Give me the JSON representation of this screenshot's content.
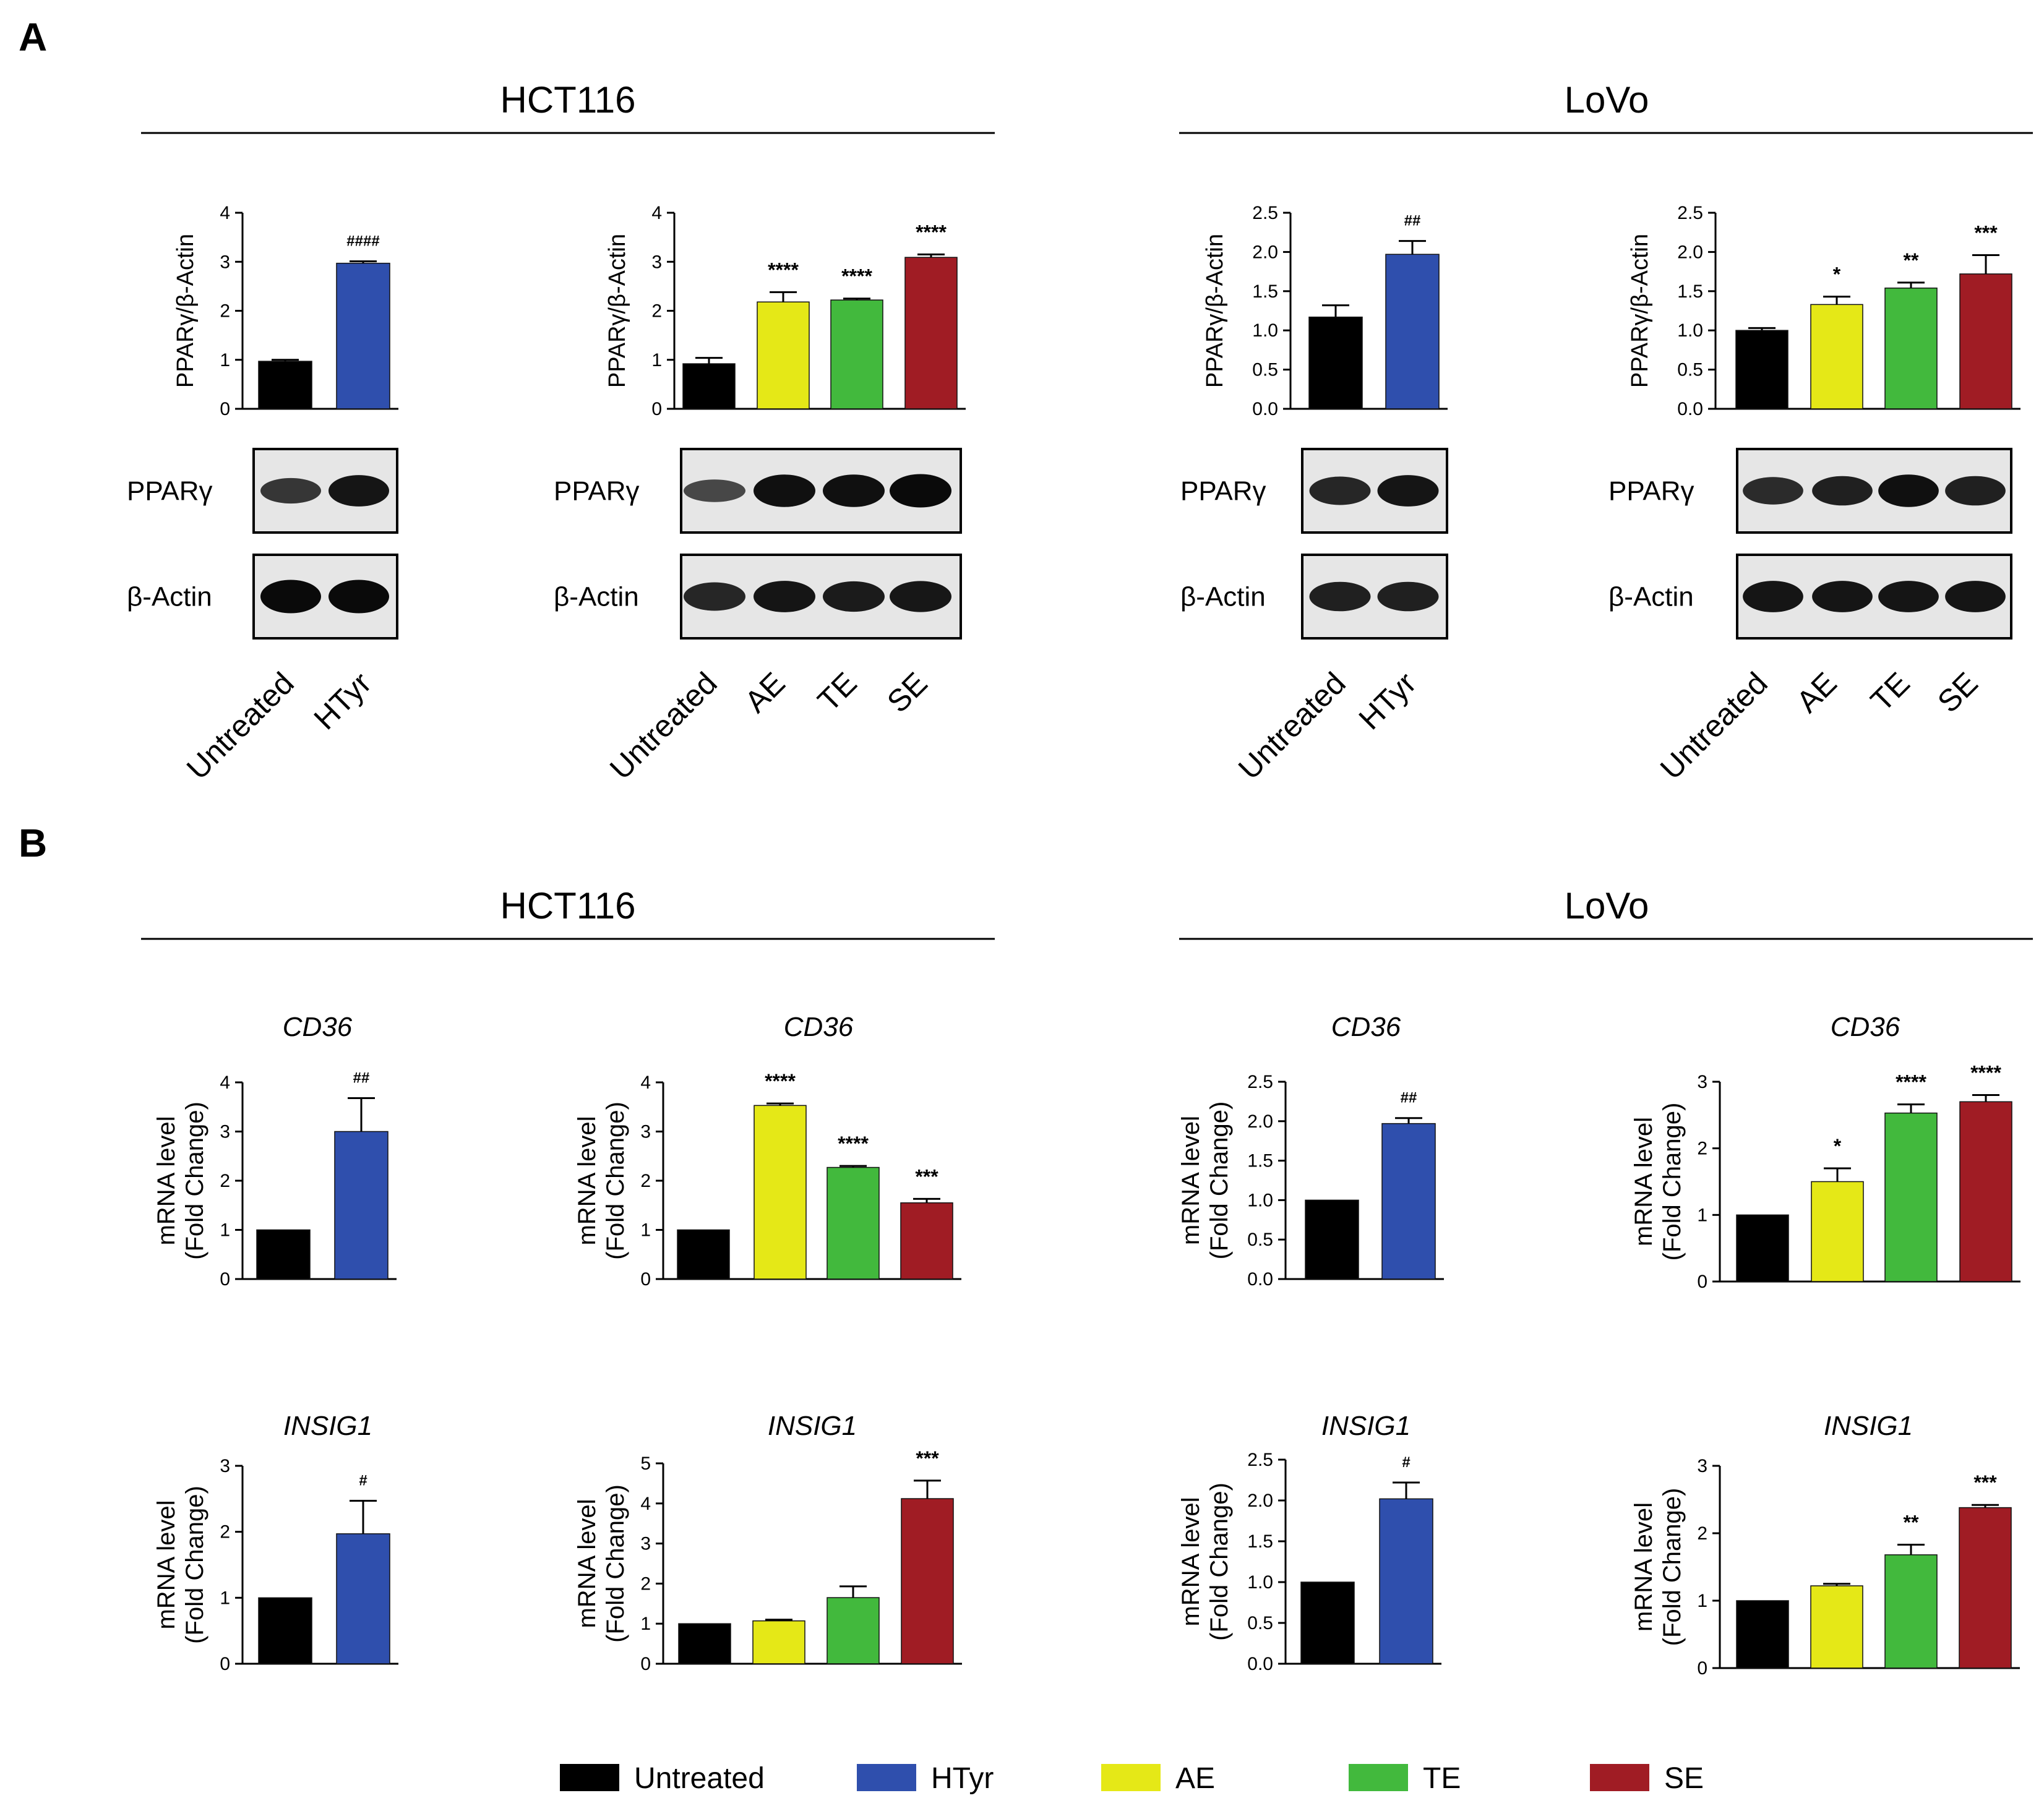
{
  "figure": {
    "panel_labels": [
      "A",
      "B"
    ],
    "section_titles": {
      "A_left": "HCT116",
      "A_right": "LoVo",
      "B_left": "HCT116",
      "B_right": "LoVo"
    },
    "blot_labels": {
      "ppar": "PPARγ",
      "actin": "β-Actin"
    },
    "legend": [
      {
        "label": "Untreated",
        "color": "#000000"
      },
      {
        "label": "HTyr",
        "color": "#2f4fad"
      },
      {
        "label": "AE",
        "color": "#e5e817"
      },
      {
        "label": "TE",
        "color": "#42b93d"
      },
      {
        "label": "SE",
        "color": "#a01c24"
      }
    ]
  },
  "chart_data": [
    {
      "id": "A1",
      "type": "bar",
      "panel": "A",
      "cell_line": "HCT116",
      "title": "",
      "ylabel": "PPARγ/β-Actin",
      "ylim": [
        0,
        4
      ],
      "yticks": [
        "0",
        "1",
        "2",
        "3",
        "4"
      ],
      "categories": [
        "Untreated",
        "HTyr"
      ],
      "values": [
        0.97,
        2.97
      ],
      "errors": [
        0.03,
        0.04
      ],
      "colors": [
        "#000000",
        "#2f4fad"
      ],
      "annotations": [
        "",
        "####"
      ]
    },
    {
      "id": "A2",
      "type": "bar",
      "panel": "A",
      "cell_line": "HCT116",
      "title": "",
      "ylabel": "PPARγ/β-Actin",
      "ylim": [
        0,
        4
      ],
      "yticks": [
        "0",
        "1",
        "2",
        "3",
        "4"
      ],
      "categories": [
        "Untreated",
        "AE",
        "TE",
        "SE"
      ],
      "values": [
        0.92,
        2.18,
        2.22,
        3.09
      ],
      "errors": [
        0.12,
        0.2,
        0.03,
        0.06
      ],
      "colors": [
        "#000000",
        "#e5e817",
        "#42b93d",
        "#a01c24"
      ],
      "annotations": [
        "",
        "****",
        "****",
        "****"
      ]
    },
    {
      "id": "A3",
      "type": "bar",
      "panel": "A",
      "cell_line": "LoVo",
      "title": "",
      "ylabel": "PPARγ/β-Actin",
      "ylim": [
        0,
        2.5
      ],
      "yticks": [
        "0.0",
        "0.5",
        "1.0",
        "1.5",
        "2.0",
        "2.5"
      ],
      "categories": [
        "Untreated",
        "HTyr"
      ],
      "values": [
        1.17,
        1.97
      ],
      "errors": [
        0.15,
        0.17
      ],
      "colors": [
        "#000000",
        "#2f4fad"
      ],
      "annotations": [
        "",
        "##"
      ]
    },
    {
      "id": "A4",
      "type": "bar",
      "panel": "A",
      "cell_line": "LoVo",
      "title": "",
      "ylabel": "PPARγ/β-Actin",
      "ylim": [
        0,
        2.5
      ],
      "yticks": [
        "0.0",
        "0.5",
        "1.0",
        "1.5",
        "2.0",
        "2.5"
      ],
      "categories": [
        "Untreated",
        "AE",
        "TE",
        "SE"
      ],
      "values": [
        1.0,
        1.33,
        1.54,
        1.72
      ],
      "errors": [
        0.03,
        0.1,
        0.07,
        0.24
      ],
      "colors": [
        "#000000",
        "#e5e817",
        "#42b93d",
        "#a01c24"
      ],
      "annotations": [
        "",
        "*",
        "**",
        "***"
      ]
    },
    {
      "id": "B1",
      "type": "bar",
      "panel": "B",
      "cell_line": "HCT116",
      "title": "CD36",
      "ylabel": [
        "mRNA level",
        "(Fold Change)"
      ],
      "ylim": [
        0,
        4
      ],
      "yticks": [
        "0",
        "1",
        "2",
        "3",
        "4"
      ],
      "categories": [
        "Untreated",
        "HTyr"
      ],
      "values": [
        1.0,
        3.0
      ],
      "errors": [
        0,
        0.68
      ],
      "colors": [
        "#000000",
        "#2f4fad"
      ],
      "annotations": [
        "",
        "##"
      ]
    },
    {
      "id": "B2",
      "type": "bar",
      "panel": "B",
      "cell_line": "HCT116",
      "title": "CD36",
      "ylabel": [
        "mRNA level",
        "(Fold Change)"
      ],
      "ylim": [
        0,
        4
      ],
      "yticks": [
        "0",
        "1",
        "2",
        "3",
        "4"
      ],
      "categories": [
        "Untreated",
        "AE",
        "TE",
        "SE"
      ],
      "values": [
        1.0,
        3.53,
        2.27,
        1.55
      ],
      "errors": [
        0,
        0.04,
        0.03,
        0.08
      ],
      "colors": [
        "#000000",
        "#e5e817",
        "#42b93d",
        "#a01c24"
      ],
      "annotations": [
        "",
        "****",
        "****",
        "***"
      ]
    },
    {
      "id": "B3",
      "type": "bar",
      "panel": "B",
      "cell_line": "LoVo",
      "title": "CD36",
      "ylabel": [
        "mRNA level",
        "(Fold Change)"
      ],
      "ylim": [
        0,
        2.5
      ],
      "yticks": [
        "0.0",
        "0.5",
        "1.0",
        "1.5",
        "2.0",
        "2.5"
      ],
      "categories": [
        "Untreated",
        "HTyr"
      ],
      "values": [
        1.0,
        1.97
      ],
      "errors": [
        0,
        0.07
      ],
      "colors": [
        "#000000",
        "#2f4fad"
      ],
      "annotations": [
        "",
        "##"
      ]
    },
    {
      "id": "B4",
      "type": "bar",
      "panel": "B",
      "cell_line": "LoVo",
      "title": "CD36",
      "ylabel": [
        "mRNA level",
        "(Fold Change)"
      ],
      "ylim": [
        0,
        3
      ],
      "yticks": [
        "0",
        "1",
        "2",
        "3"
      ],
      "categories": [
        "Untreated",
        "AE",
        "TE",
        "SE"
      ],
      "values": [
        1.0,
        1.5,
        2.53,
        2.7
      ],
      "errors": [
        0,
        0.2,
        0.13,
        0.1
      ],
      "colors": [
        "#000000",
        "#e5e817",
        "#42b93d",
        "#a01c24"
      ],
      "annotations": [
        "",
        "*",
        "****",
        "****"
      ]
    },
    {
      "id": "B5",
      "type": "bar",
      "panel": "B",
      "cell_line": "HCT116",
      "title": "INSIG1",
      "ylabel": [
        "mRNA level",
        "(Fold Change)"
      ],
      "ylim": [
        0,
        3
      ],
      "yticks": [
        "0",
        "1",
        "2",
        "3"
      ],
      "categories": [
        "Untreated",
        "HTyr"
      ],
      "values": [
        1.0,
        1.97
      ],
      "errors": [
        0,
        0.5
      ],
      "colors": [
        "#000000",
        "#2f4fad"
      ],
      "annotations": [
        "",
        "#"
      ]
    },
    {
      "id": "B6",
      "type": "bar",
      "panel": "B",
      "cell_line": "HCT116",
      "title": "INSIG1",
      "ylabel": [
        "mRNA level",
        "(Fold Change)"
      ],
      "ylim": [
        0,
        5
      ],
      "yticks": [
        "0",
        "1",
        "2",
        "3",
        "4",
        "5"
      ],
      "categories": [
        "Untreated",
        "AE",
        "TE",
        "SE"
      ],
      "values": [
        1.0,
        1.07,
        1.65,
        4.12
      ],
      "errors": [
        0,
        0.03,
        0.28,
        0.45
      ],
      "colors": [
        "#000000",
        "#e5e817",
        "#42b93d",
        "#a01c24"
      ],
      "annotations": [
        "",
        "",
        "",
        "***"
      ]
    },
    {
      "id": "B7",
      "type": "bar",
      "panel": "B",
      "cell_line": "LoVo",
      "title": "INSIG1",
      "ylabel": [
        "mRNA level",
        "(Fold Change)"
      ],
      "ylim": [
        0,
        2.5
      ],
      "yticks": [
        "0.0",
        "0.5",
        "1.0",
        "1.5",
        "2.0",
        "2.5"
      ],
      "categories": [
        "Untreated",
        "HTyr"
      ],
      "values": [
        1.0,
        2.02
      ],
      "errors": [
        0,
        0.2
      ],
      "colors": [
        "#000000",
        "#2f4fad"
      ],
      "annotations": [
        "",
        "#"
      ]
    },
    {
      "id": "B8",
      "type": "bar",
      "panel": "B",
      "cell_line": "LoVo",
      "title": "INSIG1",
      "ylabel": [
        "mRNA level",
        "(Fold Change)"
      ],
      "ylim": [
        0,
        3
      ],
      "yticks": [
        "0",
        "1",
        "2",
        "3"
      ],
      "categories": [
        "Untreated",
        "AE",
        "TE",
        "SE"
      ],
      "values": [
        1.0,
        1.22,
        1.68,
        2.38
      ],
      "errors": [
        0,
        0.03,
        0.15,
        0.04
      ],
      "colors": [
        "#000000",
        "#e5e817",
        "#42b93d",
        "#a01c24"
      ],
      "annotations": [
        "",
        "",
        "**",
        "***"
      ]
    }
  ],
  "blots": [
    {
      "id": "blot1",
      "lanes": [
        "Untreated",
        "HTyr"
      ],
      "ppar_intensity": [
        0.6,
        0.9
      ],
      "actin_intensity": [
        1.0,
        1.0
      ]
    },
    {
      "id": "blot2",
      "lanes": [
        "Untreated",
        "AE",
        "TE",
        "SE"
      ],
      "ppar_intensity": [
        0.45,
        0.95,
        0.95,
        1.0
      ],
      "actin_intensity": [
        0.75,
        0.9,
        0.85,
        0.88
      ]
    },
    {
      "id": "blot3",
      "lanes": [
        "Untreated",
        "HTyr"
      ],
      "ppar_intensity": [
        0.75,
        0.9
      ],
      "actin_intensity": [
        0.8,
        0.8
      ]
    },
    {
      "id": "blot4",
      "lanes": [
        "Untreated",
        "AE",
        "TE",
        "SE"
      ],
      "ppar_intensity": [
        0.7,
        0.8,
        0.95,
        0.8
      ],
      "actin_intensity": [
        0.9,
        0.9,
        0.9,
        0.9
      ]
    }
  ]
}
